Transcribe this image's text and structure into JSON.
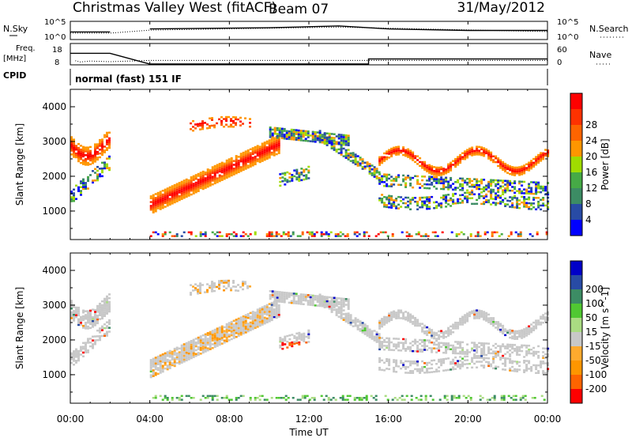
{
  "header": {
    "title": "Christmas Valley West (fitACF)",
    "beam": "Beam 07",
    "date": "31/May/2012"
  },
  "top_panels": {
    "nsky_label": "N.Sky",
    "nsky_ticks": [
      "10^5",
      "10^0"
    ],
    "nsearch_label": "N.Search",
    "nsearch_ticks": [
      "10^5",
      "10^0"
    ],
    "freq_label": "Freq.",
    "freq_unit": "[MHz]",
    "freq_ticks": [
      "18",
      "8"
    ],
    "nave_label": "Nave",
    "nave_ticks": [
      "60",
      "0"
    ],
    "cpid_label": "CPID",
    "cpid_text": "normal (fast) 151 IF"
  },
  "colors": {
    "power": [
      "#0000ff",
      "#284ba5",
      "#3c8c64",
      "#46aa46",
      "#a0dc00",
      "#ff9600",
      "#ff6400",
      "#ff3200",
      "#ff0000"
    ],
    "velocity": [
      "#ff0000",
      "#ff6400",
      "#ff9600",
      "#ffaa2e",
      "#c8c8c8",
      "#aadc82",
      "#50c832",
      "#3c8c64",
      "#284ba5",
      "#0000c8"
    ]
  },
  "chart_data": [
    {
      "type": "line",
      "title": "N.Sky / N.Search",
      "y_scale": "log",
      "ylim": [
        "10^0",
        "10^5"
      ],
      "x": [
        "00:00",
        "04:00",
        "08:00",
        "12:00",
        "16:00",
        "20:00",
        "00:00"
      ],
      "series": [
        {
          "name": "N.Sky",
          "style": "solid",
          "points": [
            [
              "00:00",
              "10^2"
            ],
            [
              "02:00",
              "10^2"
            ],
            [
              "02:00",
              "gap"
            ],
            [
              "04:00",
              "gap"
            ],
            [
              "04:00",
              "10^3"
            ],
            [
              "10:00",
              "10^3.4"
            ],
            [
              "13:30",
              "10^4"
            ],
            [
              "16:00",
              "10^3"
            ],
            [
              "20:00",
              "10^2.5"
            ],
            [
              "24:00",
              "10^2.5"
            ]
          ]
        },
        {
          "name": "N.Search",
          "style": "dotted",
          "points": [
            [
              "00:00",
              "10^2"
            ],
            [
              "02:00",
              "10^2"
            ],
            [
              "04:00",
              "10^3"
            ],
            [
              "13:30",
              "10^4"
            ],
            [
              "24:00",
              "10^2.5"
            ]
          ]
        }
      ]
    },
    {
      "type": "line",
      "title": "Freq. / Nave",
      "y_left": {
        "label": "Freq. [MHz]",
        "ticks": [
          8,
          18
        ]
      },
      "y_right": {
        "label": "Nave",
        "ticks": [
          0,
          60
        ]
      },
      "series": [
        {
          "name": "Freq.",
          "style": "solid",
          "points": [
            [
              "00:00",
              16.5
            ],
            [
              "02:00",
              16.5
            ],
            [
              "04:00",
              8
            ],
            [
              "15:00",
              8
            ],
            [
              "15:00",
              12
            ],
            [
              "24:00",
              12
            ]
          ]
        },
        {
          "name": "Nave",
          "style": "dotted",
          "points": [
            [
              "00:15",
              8
            ],
            [
              "00:30",
              4
            ],
            [
              "01:00",
              7
            ],
            [
              "02:00",
              5
            ],
            [
              "04:00",
              9
            ],
            [
              "24:00",
              9
            ]
          ]
        }
      ]
    },
    {
      "type": "heatmap",
      "title": "Power",
      "ylabel": "Slant Range [km]",
      "yticks": [
        1000,
        2000,
        3000,
        4000
      ],
      "ylim": [
        180,
        4500
      ],
      "xlabel": "Time UT",
      "xticks": [
        "00:00",
        "04:00",
        "08:00",
        "12:00",
        "16:00",
        "20:00",
        "00:00"
      ],
      "colorbar_label": "Power [dB]",
      "colorbar_ticks": [
        4,
        8,
        12,
        16,
        20,
        24,
        28
      ],
      "gap": [
        "02:00",
        "04:00"
      ]
    },
    {
      "type": "heatmap",
      "title": "Velocity",
      "ylabel": "Slant Range [km]",
      "yticks": [
        1000,
        2000,
        3000,
        4000
      ],
      "ylim": [
        180,
        4500
      ],
      "xlabel": "Time UT",
      "xticks": [
        "00:00",
        "04:00",
        "08:00",
        "12:00",
        "16:00",
        "20:00",
        "00:00"
      ],
      "colorbar_label": "Velocity [m s^-1]",
      "colorbar_ticks": [
        -200,
        -100,
        -50,
        -15,
        15,
        50,
        100,
        200
      ],
      "gap": [
        "02:00",
        "04:00"
      ]
    }
  ]
}
